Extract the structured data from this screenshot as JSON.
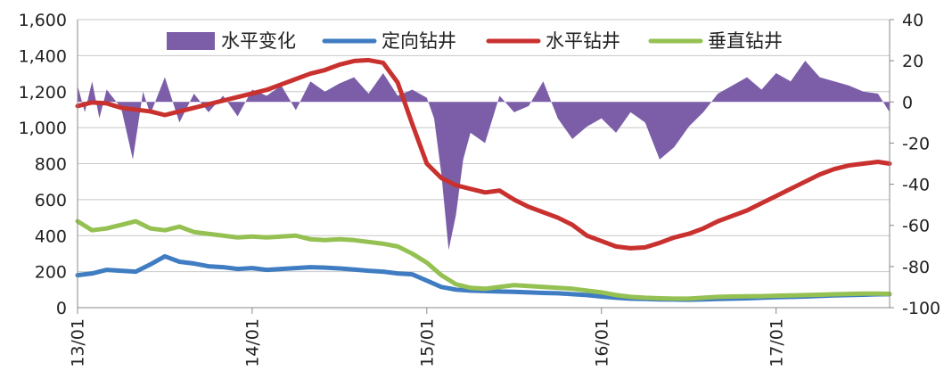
{
  "chart_data": {
    "type": "line",
    "title": "",
    "xlabel": "",
    "ylabel": "",
    "y2label": "",
    "x_ticks": [
      "13/01",
      "14/01",
      "15/01",
      "16/01",
      "17/01"
    ],
    "y_ticks": [
      "1,600",
      "1,400",
      "1,200",
      "1,000",
      "800",
      "600",
      "400",
      "200",
      "0"
    ],
    "y2_ticks": [
      "40",
      "20",
      "0",
      "-20",
      "-40",
      "-60",
      "-80",
      "-100"
    ],
    "ylim": [
      0,
      1600
    ],
    "y2lim": [
      -100,
      40
    ],
    "grid": true,
    "legend_position": "top",
    "x_unit": "months since 13/01",
    "legend": [
      "水平变化",
      "定向钻井",
      "水平钻井",
      "垂直钻井"
    ],
    "colors": {
      "change": "#7b5ea7",
      "directional": "#3f7cc2",
      "horizontal": "#c9312f",
      "vertical": "#94c151"
    },
    "series": [
      {
        "name": "水平变化",
        "type": "area",
        "axis": "right",
        "x": [
          0,
          0.5,
          1,
          1.5,
          2,
          3,
          3.8,
          4.5,
          5,
          6,
          7,
          8,
          9,
          10,
          11,
          12,
          13,
          14,
          15,
          16,
          17,
          18,
          19,
          20,
          21,
          22,
          23,
          24,
          24.5,
          25,
          25.5,
          26,
          26.5,
          27,
          28,
          29,
          30,
          31,
          32,
          33,
          34,
          35,
          36,
          37,
          38,
          39,
          40,
          41,
          42,
          43,
          44,
          45,
          46,
          47,
          48,
          49,
          50,
          51,
          52,
          53,
          54,
          55,
          55.8
        ],
        "y": [
          8,
          -5,
          10,
          -8,
          6,
          -3,
          -28,
          5,
          -6,
          12,
          -10,
          4,
          -5,
          3,
          -7,
          6,
          3,
          8,
          -4,
          10,
          5,
          9,
          12,
          4,
          14,
          3,
          6,
          2,
          -8,
          -35,
          -72,
          -55,
          -28,
          -15,
          -20,
          3,
          -5,
          -2,
          10,
          -8,
          -18,
          -12,
          -8,
          -15,
          -5,
          -10,
          -28,
          -22,
          -12,
          -5,
          4,
          8,
          12,
          6,
          14,
          10,
          20,
          12,
          10,
          8,
          5,
          4,
          -5
        ]
      },
      {
        "name": "定向钻井",
        "type": "line",
        "axis": "left",
        "x": [
          0,
          1,
          2,
          3,
          4,
          5,
          6,
          7,
          8,
          9,
          10,
          11,
          12,
          13,
          14,
          15,
          16,
          17,
          18,
          19,
          20,
          21,
          22,
          23,
          24,
          25,
          26,
          27,
          28,
          29,
          30,
          31,
          32,
          33,
          34,
          35,
          36,
          37,
          38,
          39,
          40,
          41,
          42,
          43,
          44,
          45,
          46,
          47,
          48,
          49,
          50,
          51,
          52,
          53,
          54,
          55,
          55.8
        ],
        "y": [
          180,
          190,
          210,
          205,
          200,
          240,
          285,
          255,
          245,
          230,
          225,
          215,
          220,
          210,
          215,
          220,
          225,
          222,
          218,
          212,
          205,
          200,
          190,
          185,
          150,
          115,
          100,
          95,
          92,
          90,
          88,
          85,
          82,
          80,
          75,
          70,
          62,
          55,
          50,
          48,
          46,
          45,
          44,
          46,
          48,
          50,
          52,
          55,
          58,
          60,
          62,
          65,
          68,
          70,
          72,
          74,
          75
        ]
      },
      {
        "name": "水平钻井",
        "type": "line",
        "axis": "left",
        "x": [
          0,
          1,
          2,
          3,
          4,
          5,
          6,
          7,
          8,
          9,
          10,
          11,
          12,
          13,
          14,
          15,
          16,
          17,
          18,
          19,
          20,
          21,
          22,
          23,
          24,
          25,
          26,
          27,
          28,
          29,
          30,
          31,
          32,
          33,
          34,
          35,
          36,
          37,
          38,
          39,
          40,
          41,
          42,
          43,
          44,
          45,
          46,
          47,
          48,
          49,
          50,
          51,
          52,
          53,
          54,
          55,
          55.8
        ],
        "y": [
          1120,
          1140,
          1135,
          1110,
          1100,
          1090,
          1070,
          1090,
          1110,
          1130,
          1150,
          1170,
          1190,
          1210,
          1240,
          1270,
          1300,
          1320,
          1350,
          1370,
          1375,
          1360,
          1250,
          1020,
          800,
          720,
          680,
          660,
          640,
          650,
          600,
          560,
          530,
          500,
          460,
          400,
          370,
          340,
          330,
          335,
          360,
          390,
          410,
          440,
          480,
          510,
          540,
          580,
          620,
          660,
          700,
          740,
          770,
          790,
          800,
          810,
          800
        ]
      },
      {
        "name": "垂直钻井",
        "type": "line",
        "axis": "left",
        "x": [
          0,
          1,
          2,
          3,
          4,
          5,
          6,
          7,
          8,
          9,
          10,
          11,
          12,
          13,
          14,
          15,
          16,
          17,
          18,
          19,
          20,
          21,
          22,
          23,
          24,
          25,
          26,
          27,
          28,
          29,
          30,
          31,
          32,
          33,
          34,
          35,
          36,
          37,
          38,
          39,
          40,
          41,
          42,
          43,
          44,
          45,
          46,
          47,
          48,
          49,
          50,
          51,
          52,
          53,
          54,
          55,
          55.8
        ],
        "y": [
          480,
          430,
          440,
          460,
          480,
          440,
          430,
          450,
          420,
          410,
          400,
          390,
          395,
          390,
          395,
          400,
          380,
          375,
          380,
          375,
          365,
          355,
          340,
          300,
          250,
          180,
          130,
          110,
          105,
          115,
          125,
          120,
          115,
          110,
          105,
          95,
          85,
          70,
          60,
          55,
          52,
          50,
          50,
          55,
          60,
          62,
          63,
          64,
          66,
          68,
          70,
          72,
          74,
          76,
          78,
          78,
          77
        ]
      }
    ]
  }
}
